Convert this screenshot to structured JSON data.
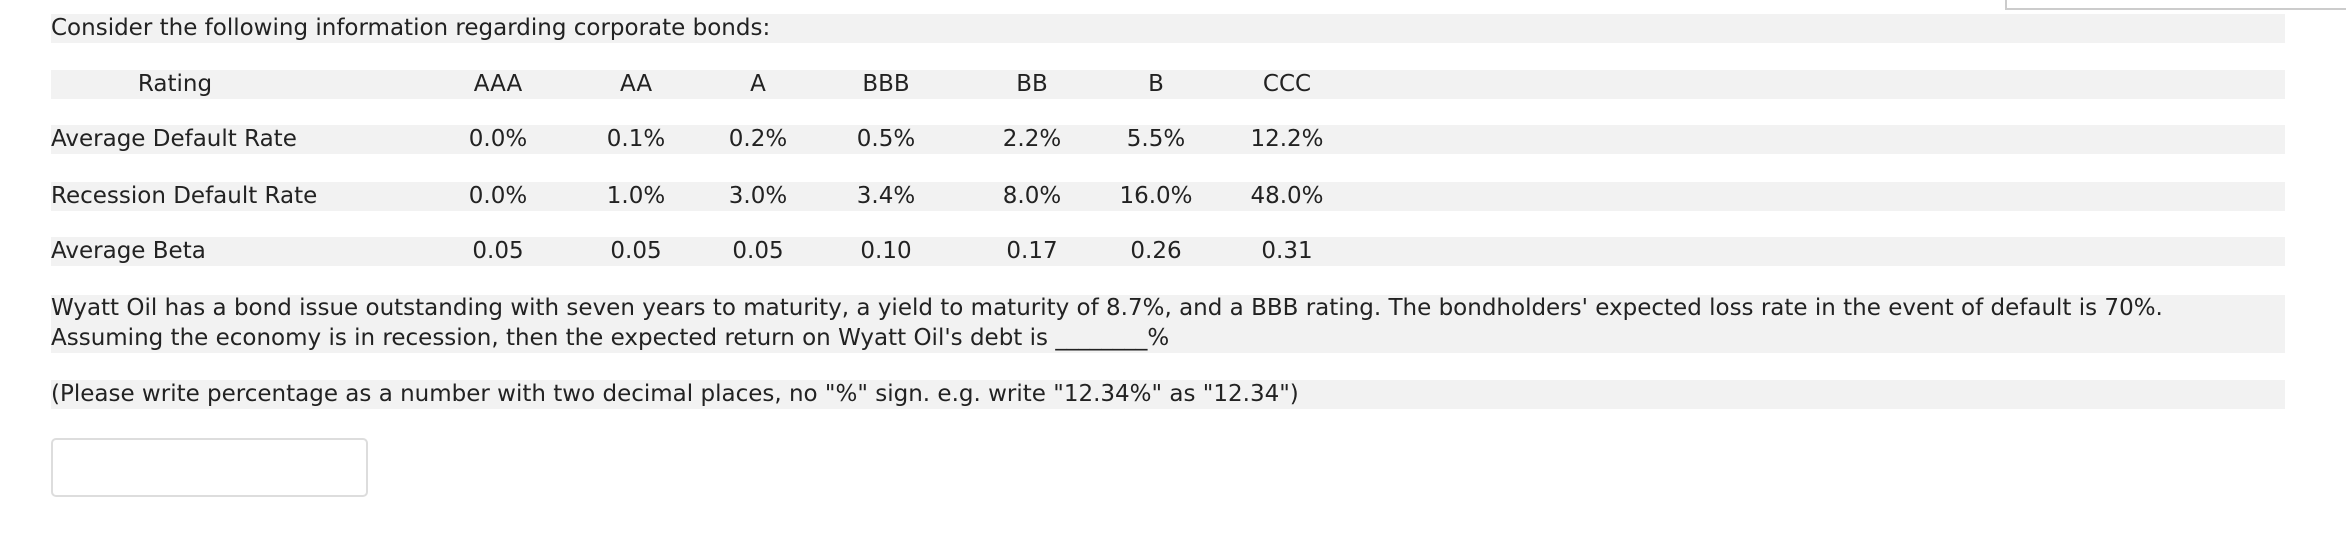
{
  "intro": "Consider the following information regarding corporate bonds:",
  "table": {
    "header": [
      "Rating",
      "AAA",
      "AA",
      "A",
      "BBB",
      "BB",
      "B",
      "CCC"
    ],
    "rows": [
      [
        "Average Default Rate",
        "0.0%",
        "0.1%",
        "0.2%",
        "0.5%",
        "2.2%",
        "5.5%",
        "12.2%"
      ],
      [
        "Recession Default Rate",
        "0.0%",
        "1.0%",
        "3.0%",
        "3.4%",
        "8.0%",
        "16.0%",
        "48.0%"
      ],
      [
        "Average Beta",
        "0.05",
        "0.05",
        "0.05",
        "0.10",
        "0.17",
        "0.26",
        "0.31"
      ]
    ]
  },
  "question": "Wyatt Oil has a bond issue outstanding with seven years to maturity, a yield to maturity of 8.7%, and a BBB rating. The bondholders' expected loss rate in the event of default is 70%.  Assuming the economy is in recession, then the expected return on Wyatt Oil's debt is ________%",
  "note": "(Please write percentage as a number with two decimal places, no \"%\" sign. e.g. write \"12.34%\" as \"12.34\")"
}
